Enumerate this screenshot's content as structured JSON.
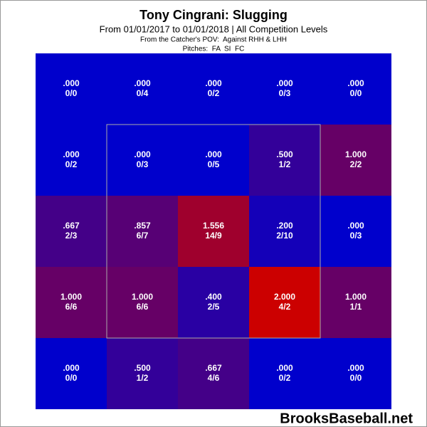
{
  "chart_data": {
    "type": "heatmap",
    "title": "Tony Cingrani: Slugging",
    "subtitle": "From 01/01/2017 to 01/01/2018 | All Competition Levels",
    "notes": [
      "From the Catcher's POV:  Against RHH & LHH",
      "Pitches:  FA  SI  FC"
    ],
    "watermark": "BrooksBaseball.net",
    "values": [
      [
        0,
        0,
        0,
        0,
        0
      ],
      [
        0,
        0,
        0,
        0.5,
        1
      ],
      [
        0.667,
        0.857,
        1.556,
        0.2,
        0
      ],
      [
        1,
        1,
        0.4,
        2,
        1
      ],
      [
        0,
        0.5,
        0.667,
        0,
        0
      ]
    ],
    "value_labels": [
      [
        ".000",
        ".000",
        ".000",
        ".000",
        ".000"
      ],
      [
        ".000",
        ".000",
        ".000",
        ".500",
        "1.000"
      ],
      [
        ".667",
        ".857",
        "1.556",
        ".200",
        ".000"
      ],
      [
        "1.000",
        "1.000",
        ".400",
        "2.000",
        "1.000"
      ],
      [
        ".000",
        ".500",
        ".667",
        ".000",
        ".000"
      ]
    ],
    "counts": [
      [
        "0/0",
        "0/4",
        "0/2",
        "0/3",
        "0/0"
      ],
      [
        "0/2",
        "0/3",
        "0/5",
        "1/2",
        "2/2"
      ],
      [
        "2/3",
        "6/7",
        "14/9",
        "2/10",
        "0/3"
      ],
      [
        "6/6",
        "6/6",
        "2/5",
        "4/2",
        "1/1"
      ],
      [
        "0/0",
        "1/2",
        "4/6",
        "0/2",
        "0/0"
      ]
    ],
    "colors": [
      [
        "#0000cc",
        "#0000cc",
        "#0000cc",
        "#0000cc",
        "#0000cc"
      ],
      [
        "#0000cc",
        "#0000cc",
        "#0000cc",
        "#330099",
        "#660066"
      ],
      [
        "#440088",
        "#570075",
        "#9f002d",
        "#1400b8",
        "#0000cc"
      ],
      [
        "#660066",
        "#660066",
        "#2900a3",
        "#cc0000",
        "#660066"
      ],
      [
        "#0000cc",
        "#330099",
        "#440088",
        "#0000cc",
        "#0000cc"
      ]
    ]
  }
}
